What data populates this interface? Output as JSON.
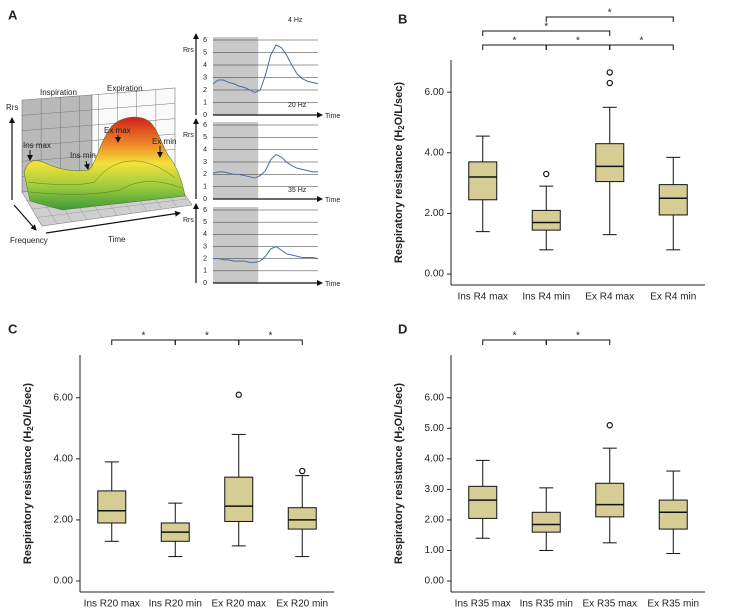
{
  "chart_data": [
    {
      "type": "illustration",
      "panel": "A",
      "labels": {
        "rrs": "Rrs",
        "inspiration": "Inspiration",
        "expiration": "Expiration",
        "ins_max": "Ins max",
        "ins_min": "Ins min",
        "ex_max": "Ex max",
        "ex_min": "Ex min",
        "frequency": "Frequency",
        "time": "Time"
      }
    },
    {
      "type": "line",
      "title": "4 Hz",
      "ylabel": "Rrs",
      "xlabel": "Time",
      "color": "#4a6d9e",
      "x": [
        0,
        0.5,
        1,
        1.5,
        2,
        2.5,
        3,
        3.5,
        4,
        4.5,
        5,
        5.5,
        6,
        6.5,
        7,
        7.5,
        8,
        8.5,
        9,
        9.5,
        10
      ],
      "values": [
        2.5,
        2.8,
        2.8,
        2.6,
        2.5,
        2.3,
        2.2,
        2.0,
        1.8,
        2.0,
        3.2,
        4.8,
        5.6,
        5.4,
        4.8,
        4.0,
        3.3,
        2.9,
        2.7,
        2.6,
        2.5
      ],
      "xlim": [
        0,
        10
      ],
      "ylim": [
        0,
        6
      ],
      "yticks": [
        0,
        1,
        2,
        3,
        4,
        5,
        6
      ]
    },
    {
      "type": "line",
      "title": "20 Hz",
      "ylabel": "Rrs",
      "xlabel": "Time",
      "color": "#4a6d9e",
      "x": [
        0,
        0.5,
        1,
        1.5,
        2,
        2.5,
        3,
        3.5,
        4,
        4.5,
        5,
        5.5,
        6,
        6.5,
        7,
        7.5,
        8,
        8.5,
        9,
        9.5,
        10
      ],
      "values": [
        2.1,
        2.2,
        2.2,
        2.1,
        2.0,
        2.0,
        1.9,
        1.8,
        1.7,
        1.9,
        2.3,
        3.2,
        3.6,
        3.4,
        3.0,
        2.7,
        2.5,
        2.4,
        2.3,
        2.2,
        2.2
      ],
      "xlim": [
        0,
        10
      ],
      "ylim": [
        0,
        6
      ],
      "yticks": [
        0,
        1,
        2,
        3,
        4,
        5,
        6
      ]
    },
    {
      "type": "line",
      "title": "35 Hz",
      "ylabel": "Rrs",
      "xlabel": "Time",
      "color": "#4a6d9e",
      "x": [
        0,
        0.5,
        1,
        1.5,
        2,
        2.5,
        3,
        3.5,
        4,
        4.5,
        5,
        5.5,
        6,
        6.5,
        7,
        7.5,
        8,
        8.5,
        9,
        9.5,
        10
      ],
      "values": [
        2.0,
        2.0,
        1.9,
        1.9,
        1.8,
        1.8,
        1.8,
        1.7,
        1.7,
        1.8,
        2.2,
        2.8,
        3.0,
        2.7,
        2.4,
        2.3,
        2.2,
        2.1,
        2.1,
        2.1,
        2.0
      ],
      "xlim": [
        0,
        10
      ],
      "ylim": [
        0,
        6
      ],
      "yticks": [
        0,
        1,
        2,
        3,
        4,
        5,
        6
      ]
    },
    {
      "type": "box",
      "panel": "B",
      "ylabel": [
        "Respiratory resistance (H",
        "2",
        "O/L/sec)"
      ],
      "color": "#d6cd94",
      "categories": [
        "Ins R4 max",
        "Ins R4 min",
        "Ex R4 max",
        "Ex R4 min"
      ],
      "boxes": [
        {
          "whislo": 1.4,
          "q1": 2.45,
          "med": 3.2,
          "q3": 3.7,
          "whishi": 4.55,
          "fliers": []
        },
        {
          "whislo": 0.8,
          "q1": 1.45,
          "med": 1.7,
          "q3": 2.1,
          "whishi": 2.9,
          "fliers": [
            3.3
          ]
        },
        {
          "whislo": 1.3,
          "q1": 3.05,
          "med": 3.55,
          "q3": 4.3,
          "whishi": 5.5,
          "fliers": [
            6.3,
            6.65
          ]
        },
        {
          "whislo": 0.8,
          "q1": 1.95,
          "med": 2.5,
          "q3": 2.95,
          "whishi": 3.85,
          "fliers": []
        }
      ],
      "ylim": [
        -0.36,
        7.06
      ],
      "yticks": [
        {
          "value": 0,
          "label": "0.00"
        },
        {
          "value": 2,
          "label": "2.00"
        },
        {
          "value": 4,
          "label": "4.00"
        },
        {
          "value": 6,
          "label": "6.00"
        }
      ],
      "significance": [
        {
          "from": 0,
          "to": 1,
          "label": "*"
        },
        {
          "from": 1,
          "to": 2,
          "label": "*"
        },
        {
          "from": 2,
          "to": 3,
          "label": "*"
        },
        {
          "from": 0,
          "to": 2,
          "label": "*"
        },
        {
          "from": 1,
          "to": 3,
          "label": "*"
        }
      ]
    },
    {
      "type": "box",
      "panel": "C",
      "ylabel": [
        "Respiratory resistance (H",
        "2",
        "O/L/sec)"
      ],
      "color": "#d6cd94",
      "categories": [
        "Ins R20 max",
        "Ins R20 min",
        "Ex R20 max",
        "Ex R20 min"
      ],
      "boxes": [
        {
          "whislo": 1.3,
          "q1": 1.9,
          "med": 2.3,
          "q3": 2.95,
          "whishi": 3.9,
          "fliers": []
        },
        {
          "whislo": 0.8,
          "q1": 1.3,
          "med": 1.6,
          "q3": 1.9,
          "whishi": 2.55,
          "fliers": []
        },
        {
          "whislo": 1.15,
          "q1": 1.95,
          "med": 2.45,
          "q3": 3.4,
          "whishi": 4.8,
          "fliers": [
            6.1
          ]
        },
        {
          "whislo": 0.8,
          "q1": 1.7,
          "med": 2.0,
          "q3": 2.4,
          "whishi": 3.45,
          "fliers": [
            3.6
          ]
        }
      ],
      "ylim": [
        -0.36,
        7.4
      ],
      "yticks": [
        {
          "value": 0,
          "label": "0.00"
        },
        {
          "value": 2,
          "label": "2.00"
        },
        {
          "value": 4,
          "label": "4.00"
        },
        {
          "value": 6,
          "label": "6.00"
        }
      ],
      "significance": [
        {
          "from": 0,
          "to": 1,
          "label": "*"
        },
        {
          "from": 1,
          "to": 2,
          "label": "*"
        },
        {
          "from": 2,
          "to": 3,
          "label": "*"
        }
      ]
    },
    {
      "type": "box",
      "panel": "D",
      "ylabel": [
        "Respiratory resistance (H",
        "2",
        "O/L/sec)"
      ],
      "color": "#d6cd94",
      "categories": [
        "Ins R35 max",
        "Ins R35 min",
        "Ex R35 max",
        "Ex R35 min"
      ],
      "boxes": [
        {
          "whislo": 1.4,
          "q1": 2.05,
          "med": 2.65,
          "q3": 3.1,
          "whishi": 3.95,
          "fliers": []
        },
        {
          "whislo": 1.0,
          "q1": 1.6,
          "med": 1.85,
          "q3": 2.25,
          "whishi": 3.05,
          "fliers": []
        },
        {
          "whislo": 1.25,
          "q1": 2.1,
          "med": 2.5,
          "q3": 3.2,
          "whishi": 4.35,
          "fliers": [
            5.1
          ]
        },
        {
          "whislo": 0.9,
          "q1": 1.7,
          "med": 2.25,
          "q3": 2.65,
          "whishi": 3.6,
          "fliers": []
        }
      ],
      "ylim": [
        -0.36,
        7.4
      ],
      "yticks": [
        {
          "value": 0,
          "label": "0.00"
        },
        {
          "value": 1,
          "label": "1.00"
        },
        {
          "value": 2,
          "label": "2.00"
        },
        {
          "value": 3,
          "label": "3.00"
        },
        {
          "value": 4,
          "label": "4.00"
        },
        {
          "value": 5,
          "label": "5.00"
        },
        {
          "value": 6,
          "label": "6.00"
        }
      ],
      "significance": [
        {
          "from": 0,
          "to": 1,
          "label": "*"
        },
        {
          "from": 1,
          "to": 2,
          "label": "*"
        }
      ]
    }
  ]
}
